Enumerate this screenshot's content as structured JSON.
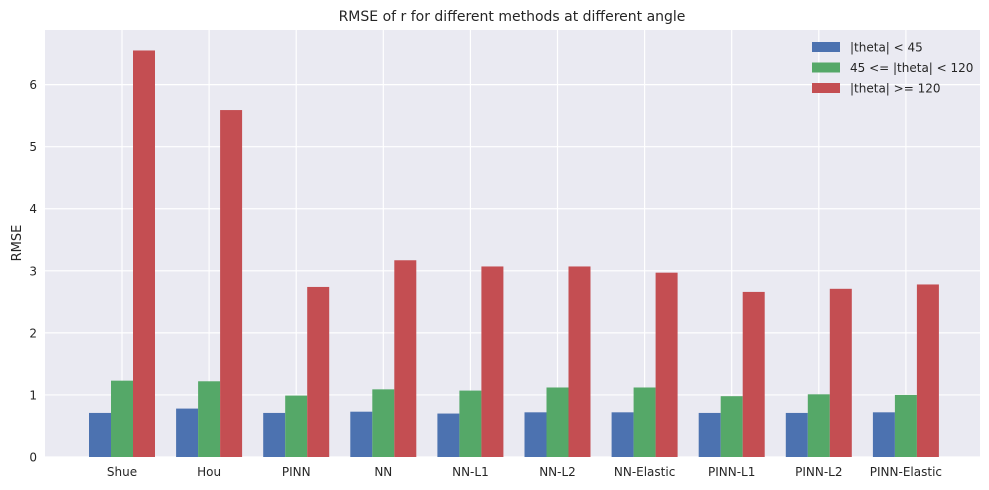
{
  "chart_data": {
    "type": "bar",
    "title": "RMSE of r for different methods at different angle",
    "xlabel": "",
    "ylabel": "RMSE",
    "ylim": [
      0,
      6.88
    ],
    "yticks": [
      0,
      1,
      2,
      3,
      4,
      5,
      6
    ],
    "grid": true,
    "legend_position": "top-right",
    "categories": [
      "Shue",
      "Hou",
      "PINN",
      "NN",
      "NN-L1",
      "NN-L2",
      "NN-Elastic",
      "PINN-L1",
      "PINN-L2",
      "PINN-Elastic"
    ],
    "series": [
      {
        "name": "|theta| < 45",
        "color": "#4c72b0",
        "values": [
          0.71,
          0.78,
          0.71,
          0.73,
          0.7,
          0.72,
          0.72,
          0.71,
          0.71,
          0.72
        ]
      },
      {
        "name": "45 <= |theta| < 120",
        "color": "#55a868",
        "values": [
          1.23,
          1.22,
          0.99,
          1.09,
          1.07,
          1.12,
          1.12,
          0.98,
          1.01,
          1.0
        ]
      },
      {
        "name": "|theta| >= 120",
        "color": "#c44e52",
        "values": [
          6.55,
          5.59,
          2.74,
          3.17,
          3.07,
          3.07,
          2.97,
          2.66,
          2.71,
          2.78
        ]
      }
    ]
  }
}
